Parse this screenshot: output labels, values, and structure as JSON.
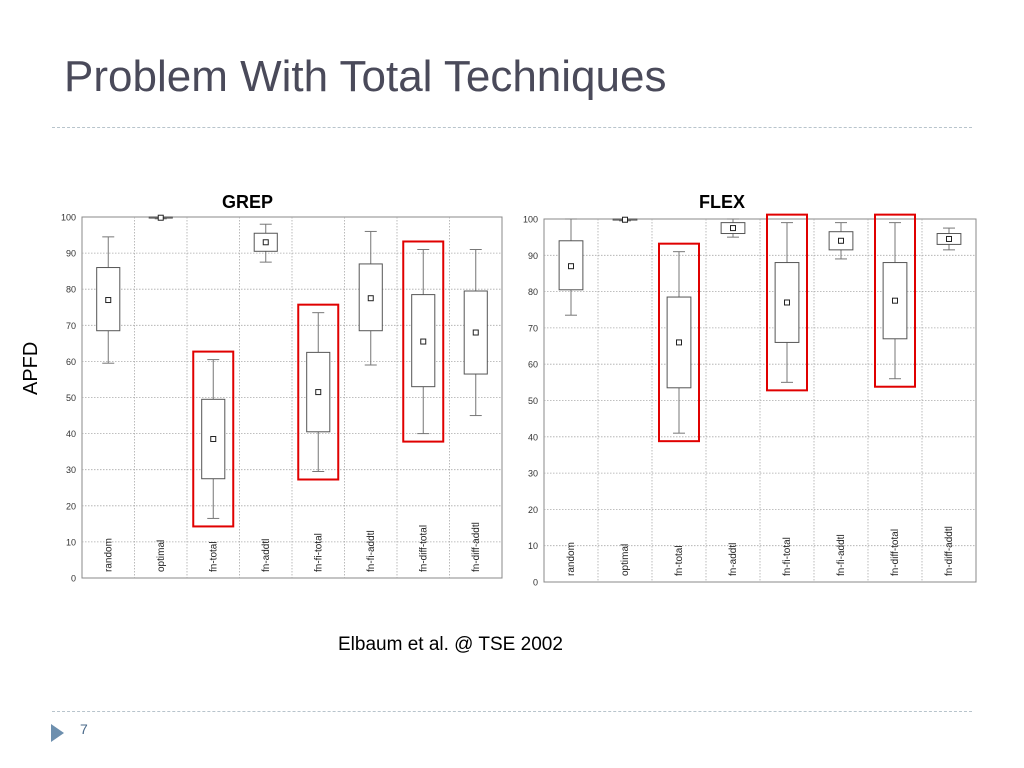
{
  "slide": {
    "title": "Problem With Total Techniques",
    "ylabel": "APFD",
    "citation": "Elbaum et al. @ TSE 2002",
    "page_number": "7"
  },
  "chart_data": [
    {
      "type": "box",
      "title": "GREP",
      "ylim": [
        0,
        100
      ],
      "yticks": [
        0,
        10,
        20,
        30,
        40,
        50,
        60,
        70,
        80,
        90,
        100
      ],
      "grid": true,
      "categories": [
        "random",
        "optimal",
        "fn-total",
        "fn-addtl",
        "fn-fi-total",
        "fn-fi-addtl",
        "fn-diff-total",
        "fn-diff-addtl"
      ],
      "boxes": [
        {
          "min": 59.5,
          "q1": 68.5,
          "median": 77,
          "q3": 86,
          "max": 94.5
        },
        {
          "min": 99.5,
          "q1": 99.7,
          "median": 99.8,
          "q3": 100,
          "max": 100
        },
        {
          "min": 16.5,
          "q1": 27.5,
          "median": 38.5,
          "q3": 49.5,
          "max": 60.5
        },
        {
          "min": 87.5,
          "q1": 90.5,
          "median": 93,
          "q3": 95.5,
          "max": 98
        },
        {
          "min": 29.5,
          "q1": 40.5,
          "median": 51.5,
          "q3": 62.5,
          "max": 73.5
        },
        {
          "min": 59,
          "q1": 68.5,
          "median": 77.5,
          "q3": 87,
          "max": 96
        },
        {
          "min": 40,
          "q1": 53,
          "median": 65.5,
          "q3": 78.5,
          "max": 91
        },
        {
          "min": 45,
          "q1": 56.5,
          "median": 68,
          "q3": 79.5,
          "max": 91
        }
      ],
      "highlighted": [
        "fn-total",
        "fn-fi-total",
        "fn-diff-total"
      ],
      "highlight_color": "#e00000"
    },
    {
      "type": "box",
      "title": "FLEX",
      "ylim": [
        0,
        100
      ],
      "yticks": [
        0,
        10,
        20,
        30,
        40,
        50,
        60,
        70,
        80,
        90,
        100
      ],
      "grid": true,
      "categories": [
        "random",
        "optimal",
        "fn-total",
        "fn-addtl",
        "fn-fi-total",
        "fn-fi-addtl",
        "fn-diff-total",
        "fn-diff-addtl"
      ],
      "boxes": [
        {
          "min": 73.5,
          "q1": 80.5,
          "median": 87,
          "q3": 94,
          "max": 100
        },
        {
          "min": 99.5,
          "q1": 99.7,
          "median": 99.8,
          "q3": 100,
          "max": 100
        },
        {
          "min": 41,
          "q1": 53.5,
          "median": 66,
          "q3": 78.5,
          "max": 91
        },
        {
          "min": 95,
          "q1": 96,
          "median": 97.5,
          "q3": 99,
          "max": 100
        },
        {
          "min": 55,
          "q1": 66,
          "median": 77,
          "q3": 88,
          "max": 99
        },
        {
          "min": 89,
          "q1": 91.5,
          "median": 94,
          "q3": 96.5,
          "max": 99
        },
        {
          "min": 56,
          "q1": 67,
          "median": 77.5,
          "q3": 88,
          "max": 99
        },
        {
          "min": 91.5,
          "q1": 93,
          "median": 94.5,
          "q3": 96,
          "max": 97.5
        }
      ],
      "highlighted": [
        "fn-total",
        "fn-fi-total",
        "fn-diff-total"
      ],
      "highlight_color": "#e00000"
    }
  ]
}
